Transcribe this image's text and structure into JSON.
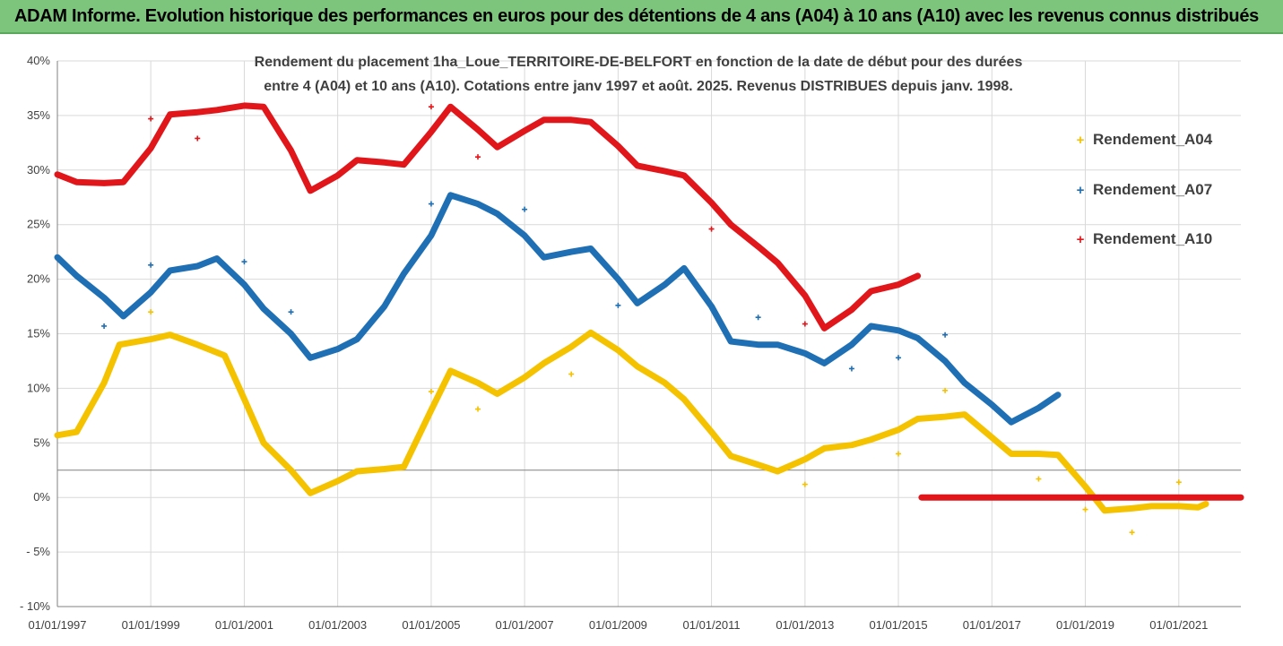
{
  "banner": {
    "title": "ADAM Informe. Evolution historique des performances en euros pour des détentions de 4 ans (A04) à 10 ans (A10) avec les revenus connus distribués"
  },
  "chart_data": {
    "type": "scatter",
    "title_lines": [
      "Rendement du placement 1ha_Loue_TERRITOIRE-DE-BELFORT en fonction de la date de début pour des durées",
      "entre 4 (A04) et 10 ans (A10). Cotations entre janv 1997 et août. 2025. Revenus DISTRIBUES depuis janv. 1998."
    ],
    "xlim": [
      "1997-01-01",
      "2022-05-01"
    ],
    "ylim": [
      -10,
      40
    ],
    "y_unit": "%",
    "y_ticks": [
      -10,
      -5,
      0,
      5,
      10,
      15,
      20,
      25,
      30,
      35,
      40
    ],
    "y_tick_labels": [
      "- 10%",
      "- 5%",
      "0%",
      "5%",
      "10%",
      "15%",
      "20%",
      "25%",
      "30%",
      "35%",
      "40%"
    ],
    "x_ticks": [
      "1997-01-01",
      "1999-01-01",
      "2001-01-01",
      "2003-01-01",
      "2005-01-01",
      "2007-01-01",
      "2009-01-01",
      "2011-01-01",
      "2013-01-01",
      "2015-01-01",
      "2017-01-01",
      "2019-01-01",
      "2021-01-01"
    ],
    "x_tick_labels": [
      "01/01/1997",
      "01/01/1999",
      "01/01/2001",
      "01/01/2003",
      "01/01/2005",
      "01/01/2007",
      "01/01/2009",
      "01/01/2011",
      "01/01/2013",
      "01/01/2015",
      "01/01/2017",
      "01/01/2019",
      "01/01/2021"
    ],
    "reference_line_y": 2.5,
    "grid": true,
    "legend_position": "right",
    "marker": "+",
    "series": [
      {
        "name": "Rendement_A04",
        "color": "#f5c200",
        "line": [
          [
            "1997-01-01",
            5.7
          ],
          [
            "1997-06-01",
            6.0
          ],
          [
            "1998-01-01",
            10.5
          ],
          [
            "1998-05-01",
            14.0
          ],
          [
            "1999-01-01",
            14.5
          ],
          [
            "1999-06-01",
            14.9
          ],
          [
            "2000-01-01",
            14.0
          ],
          [
            "2000-08-01",
            13.0
          ],
          [
            "2001-01-01",
            9.0
          ],
          [
            "2001-06-01",
            5.0
          ],
          [
            "2002-01-01",
            2.5
          ],
          [
            "2002-06-01",
            0.4
          ],
          [
            "2003-01-01",
            1.5
          ],
          [
            "2003-06-01",
            2.4
          ],
          [
            "2004-01-01",
            2.6
          ],
          [
            "2004-06-01",
            2.8
          ],
          [
            "2005-01-01",
            8.0
          ],
          [
            "2005-06-01",
            11.6
          ],
          [
            "2006-01-01",
            10.5
          ],
          [
            "2006-06-01",
            9.5
          ],
          [
            "2007-01-01",
            11.0
          ],
          [
            "2007-06-01",
            12.3
          ],
          [
            "2008-01-01",
            13.8
          ],
          [
            "2008-06-01",
            15.1
          ],
          [
            "2009-01-01",
            13.5
          ],
          [
            "2009-06-01",
            12.0
          ],
          [
            "2010-01-01",
            10.5
          ],
          [
            "2010-06-01",
            9.0
          ],
          [
            "2011-01-01",
            6.0
          ],
          [
            "2011-06-01",
            3.8
          ],
          [
            "2012-01-01",
            3.0
          ],
          [
            "2012-06-01",
            2.4
          ],
          [
            "2013-01-01",
            3.5
          ],
          [
            "2013-06-01",
            4.5
          ],
          [
            "2014-01-01",
            4.8
          ],
          [
            "2014-06-01",
            5.3
          ],
          [
            "2015-01-01",
            6.2
          ],
          [
            "2015-06-01",
            7.2
          ],
          [
            "2016-01-01",
            7.4
          ],
          [
            "2016-06-01",
            7.6
          ],
          [
            "2017-01-01",
            5.5
          ],
          [
            "2017-06-01",
            4.0
          ],
          [
            "2018-01-01",
            4.0
          ],
          [
            "2018-06-01",
            3.9
          ],
          [
            "2019-01-01",
            1.0
          ],
          [
            "2019-06-01",
            -1.2
          ],
          [
            "2020-01-01",
            -1.0
          ],
          [
            "2020-06-01",
            -0.8
          ],
          [
            "2021-01-01",
            -0.8
          ],
          [
            "2021-06-01",
            -0.9
          ],
          [
            "2021-08-01",
            -0.6
          ]
        ],
        "outliers": [
          [
            "1999-01-01",
            17.0
          ],
          [
            "2005-01-01",
            9.7
          ],
          [
            "2006-01-01",
            8.1
          ],
          [
            "2008-01-01",
            11.3
          ],
          [
            "2013-01-01",
            1.2
          ],
          [
            "2015-01-01",
            4.0
          ],
          [
            "2016-01-01",
            9.8
          ],
          [
            "2018-01-01",
            1.7
          ],
          [
            "2019-01-01",
            -1.1
          ],
          [
            "2020-01-01",
            -3.2
          ],
          [
            "2021-01-01",
            1.4
          ]
        ]
      },
      {
        "name": "Rendement_A07",
        "color": "#1f6fb5",
        "line": [
          [
            "1997-01-01",
            22.0
          ],
          [
            "1997-06-01",
            20.3
          ],
          [
            "1998-01-01",
            18.3
          ],
          [
            "1998-06-01",
            16.6
          ],
          [
            "1999-01-01",
            18.8
          ],
          [
            "1999-06-01",
            20.8
          ],
          [
            "2000-01-01",
            21.2
          ],
          [
            "2000-06-01",
            21.9
          ],
          [
            "2001-01-01",
            19.5
          ],
          [
            "2001-06-01",
            17.3
          ],
          [
            "2002-01-01",
            15.0
          ],
          [
            "2002-06-01",
            12.8
          ],
          [
            "2003-01-01",
            13.6
          ],
          [
            "2003-06-01",
            14.5
          ],
          [
            "2004-01-01",
            17.5
          ],
          [
            "2004-06-01",
            20.5
          ],
          [
            "2005-01-01",
            24.0
          ],
          [
            "2005-06-01",
            27.7
          ],
          [
            "2006-01-01",
            26.9
          ],
          [
            "2006-06-01",
            26.0
          ],
          [
            "2007-01-01",
            24.0
          ],
          [
            "2007-06-01",
            22.0
          ],
          [
            "2008-01-01",
            22.5
          ],
          [
            "2008-06-01",
            22.8
          ],
          [
            "2009-01-01",
            20.0
          ],
          [
            "2009-06-01",
            17.8
          ],
          [
            "2010-01-01",
            19.5
          ],
          [
            "2010-06-01",
            21.0
          ],
          [
            "2011-01-01",
            17.5
          ],
          [
            "2011-06-01",
            14.3
          ],
          [
            "2012-01-01",
            14.0
          ],
          [
            "2012-06-01",
            14.0
          ],
          [
            "2013-01-01",
            13.2
          ],
          [
            "2013-06-01",
            12.3
          ],
          [
            "2014-01-01",
            14.0
          ],
          [
            "2014-06-01",
            15.7
          ],
          [
            "2015-01-01",
            15.3
          ],
          [
            "2015-06-01",
            14.6
          ],
          [
            "2016-01-01",
            12.5
          ],
          [
            "2016-06-01",
            10.5
          ],
          [
            "2017-01-01",
            8.5
          ],
          [
            "2017-06-01",
            6.9
          ],
          [
            "2018-01-01",
            8.2
          ],
          [
            "2018-06-01",
            9.4
          ]
        ],
        "outliers": [
          [
            "1998-01-01",
            15.7
          ],
          [
            "1999-01-01",
            21.3
          ],
          [
            "2001-01-01",
            21.6
          ],
          [
            "2002-01-01",
            17.0
          ],
          [
            "2005-01-01",
            26.9
          ],
          [
            "2007-01-01",
            26.4
          ],
          [
            "2009-01-01",
            17.6
          ],
          [
            "2012-01-01",
            16.5
          ],
          [
            "2014-01-01",
            11.8
          ],
          [
            "2015-01-01",
            12.8
          ],
          [
            "2016-01-01",
            14.9
          ]
        ]
      },
      {
        "name": "Rendement_A10",
        "color": "#e0161b",
        "line": [
          [
            "1997-01-01",
            29.6
          ],
          [
            "1997-06-01",
            28.9
          ],
          [
            "1998-01-01",
            28.8
          ],
          [
            "1998-06-01",
            28.9
          ],
          [
            "1999-01-01",
            32.0
          ],
          [
            "1999-06-01",
            35.1
          ],
          [
            "2000-01-01",
            35.3
          ],
          [
            "2000-06-01",
            35.5
          ],
          [
            "2001-01-01",
            35.9
          ],
          [
            "2001-06-01",
            35.8
          ],
          [
            "2002-01-01",
            31.8
          ],
          [
            "2002-06-01",
            28.1
          ],
          [
            "2003-01-01",
            29.5
          ],
          [
            "2003-06-01",
            30.9
          ],
          [
            "2004-01-01",
            30.7
          ],
          [
            "2004-06-01",
            30.5
          ],
          [
            "2005-01-01",
            33.5
          ],
          [
            "2005-06-01",
            35.8
          ],
          [
            "2006-01-01",
            33.7
          ],
          [
            "2006-06-01",
            32.1
          ],
          [
            "2007-01-01",
            33.6
          ],
          [
            "2007-06-01",
            34.6
          ],
          [
            "2008-01-01",
            34.6
          ],
          [
            "2008-06-01",
            34.4
          ],
          [
            "2009-01-01",
            32.2
          ],
          [
            "2009-06-01",
            30.4
          ],
          [
            "2010-01-01",
            29.9
          ],
          [
            "2010-06-01",
            29.5
          ],
          [
            "2011-01-01",
            27.0
          ],
          [
            "2011-06-01",
            25.0
          ],
          [
            "2012-01-01",
            23.0
          ],
          [
            "2012-06-01",
            21.5
          ],
          [
            "2013-01-01",
            18.5
          ],
          [
            "2013-06-01",
            15.5
          ],
          [
            "2014-01-01",
            17.2
          ],
          [
            "2014-06-01",
            18.9
          ],
          [
            "2015-01-01",
            19.5
          ],
          [
            "2015-06-01",
            20.3
          ]
        ],
        "line_zero": [
          [
            "2015-07-01",
            0.0
          ],
          [
            "2022-05-01",
            0.0
          ]
        ],
        "outliers": [
          [
            "1999-01-01",
            34.7
          ],
          [
            "2000-01-01",
            32.9
          ],
          [
            "2005-01-01",
            35.8
          ],
          [
            "2006-01-01",
            31.2
          ],
          [
            "2011-01-01",
            24.6
          ],
          [
            "2013-01-01",
            15.9
          ]
        ]
      }
    ]
  }
}
